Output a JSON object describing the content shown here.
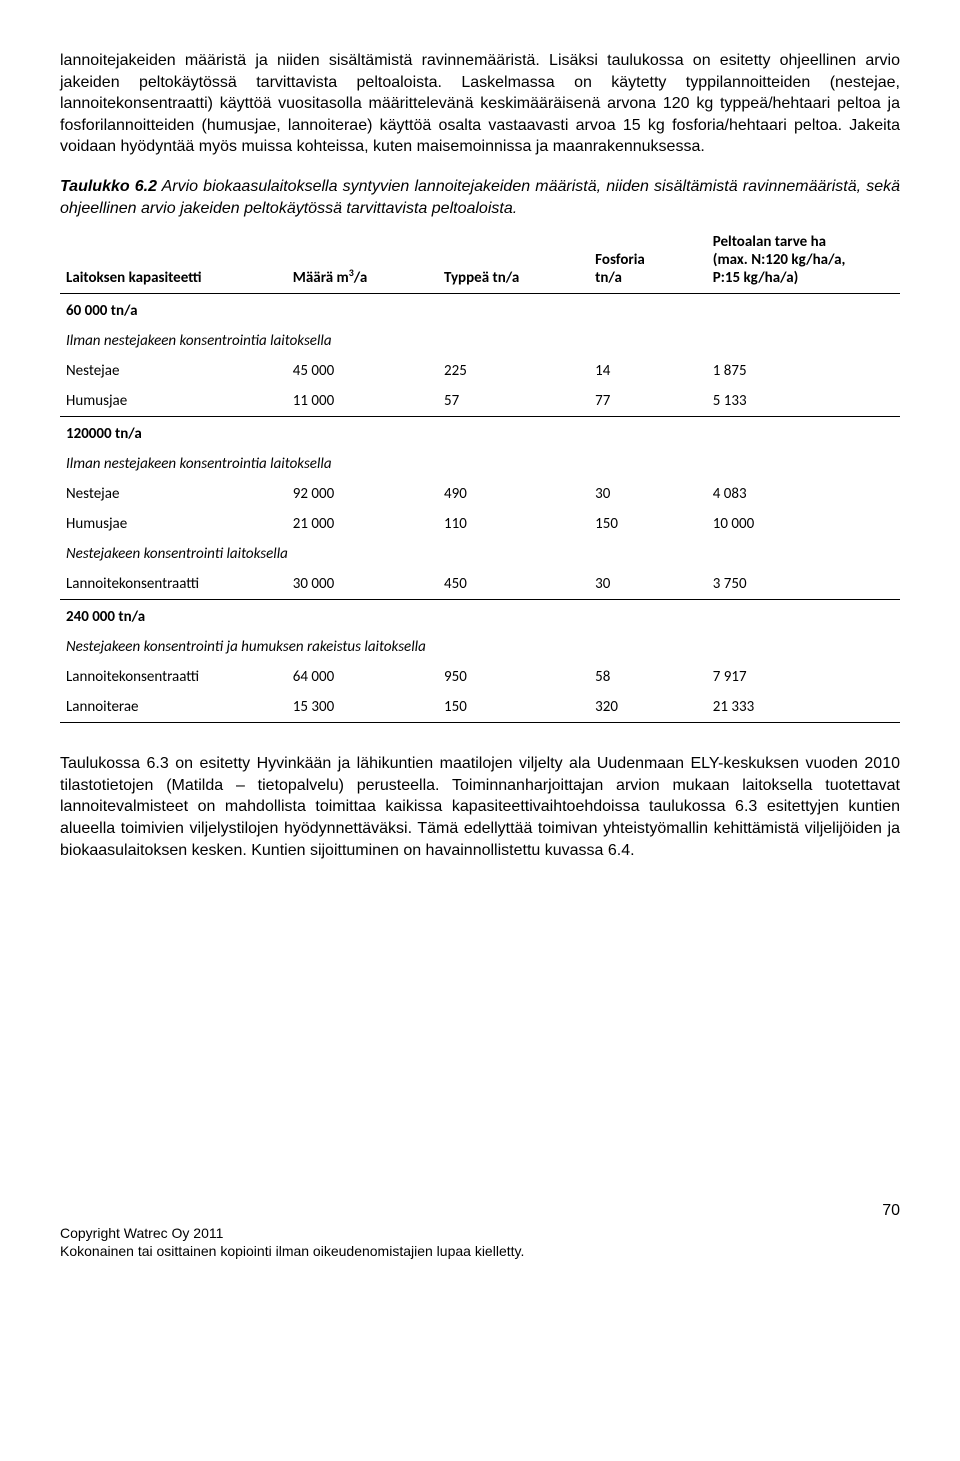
{
  "para1": "lannoitejakeiden määristä ja niiden sisältämistä ravinnemääristä. Lisäksi taulukossa on esitetty ohjeellinen arvio jakeiden peltokäytössä tarvittavista peltoaloista. Laskelmassa on käytetty typpilannoitteiden (nestejae, lannoitekonsentraatti) käyttöä vuositasolla määrittelevänä keskimääräisenä arvona 120 kg typpeä/hehtaari peltoa ja fosforilannoitteiden (humusjae, lannoiterae) käyttöä osalta vastaavasti arvoa 15 kg fosforia/hehtaari peltoa. Jakeita voidaan hyödyntää myös muissa kohteissa, kuten maisemoinnissa ja maanrakennuksessa.",
  "caption": {
    "lead": "Taulukko 6.2",
    "rest": " Arvio biokaasulaitoksella syntyvien lannoitejakeiden määristä, niiden sisältämistä ravinnemääristä, sekä ohjeellinen arvio jakeiden peltokäytössä tarvittavista peltoaloista."
  },
  "table": {
    "headers": {
      "cap": "Laitoksen kapasiteetti",
      "m_pre": "Määrä m",
      "m_sup": "3",
      "m_post": "/a",
      "n": "Typpeä  tn/a",
      "p_l1": "Fosforia",
      "p_l2": "tn/a",
      "ha_l1": "Peltoalan tarve ha",
      "ha_l2": "(max. N:120 kg/ha/a,",
      "ha_l3": "P:15 kg/ha/a)"
    },
    "sections": [
      {
        "title": "60 000 tn/a",
        "sub": "Ilman nestejakeen konsentrointia laitoksella",
        "rows": [
          {
            "name": "Nestejae",
            "m": "45 000",
            "n": "225",
            "p": "14",
            "ha": "1 875"
          },
          {
            "name": "Humusjae",
            "m": "11 000",
            "n": "57",
            "p": "77",
            "ha": "5 133",
            "bordered": true
          }
        ]
      },
      {
        "title": "120000 tn/a",
        "sub": "Ilman nestejakeen konsentrointia laitoksella",
        "rows": [
          {
            "name": "Nestejae",
            "m": "92 000",
            "n": "490",
            "p": "30",
            "ha": "4 083"
          },
          {
            "name": "Humusjae",
            "m": "21 000",
            "n": "110",
            "p": "150",
            "ha": "10 000"
          }
        ],
        "sub2": "Nestejakeen konsentrointi laitoksella",
        "rows2": [
          {
            "name": "Lannoitekonsentraatti",
            "m": "30 000",
            "n": "450",
            "p": "30",
            "ha": "3 750",
            "bordered": true
          }
        ]
      },
      {
        "title": "240 000 tn/a",
        "sub": "Nestejakeen konsentrointi ja humuksen rakeistus laitoksella",
        "rows": [
          {
            "name": "Lannoitekonsentraatti",
            "m": "64 000",
            "n": "950",
            "p": "58",
            "ha": "7 917"
          },
          {
            "name": "Lannoiterae",
            "m": "15 300",
            "n": "150",
            "p": "320",
            "ha": "21 333",
            "bordered": true
          }
        ]
      }
    ]
  },
  "para2": "Taulukossa 6.3 on esitetty Hyvinkään ja lähikuntien maatilojen viljelty ala Uudenmaan ELY-keskuksen vuoden 2010 tilastotietojen (Matilda – tietopalvelu) perusteella. Toiminnanharjoittajan arvion mukaan laitoksella tuotettavat lannoitevalmisteet on mahdollista toimittaa kaikissa kapasiteettivaihtoehdoissa taulukossa 6.3 esitettyjen kuntien alueella toimivien viljelystilojen hyödynnettäväksi. Tämä edellyttää toimivan yhteistyömallin kehittämistä viljelijöiden ja biokaasulaitoksen kesken. Kuntien sijoittuminen on havainnollistettu kuvassa 6.4.",
  "footer": {
    "page": "70",
    "l1": "Copyright Watrec Oy 2011",
    "l2": "Kokonainen tai osittainen kopiointi ilman oikeudenomistajien lupaa kielletty."
  }
}
